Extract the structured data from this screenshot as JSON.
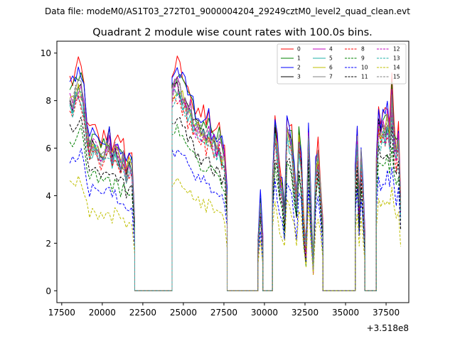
{
  "chart_data": {
    "type": "line",
    "suptitle": "Data file: modeM0/AS1T03_272T01_9000004204_29249cztM0_level2_quad_clean.evt",
    "title": "Quadrant 2 module wise count rates with 100.0s bins.",
    "xlabel": "",
    "ylabel": "",
    "x_offset_label": "+3.518e8",
    "xlim": [
      17200,
      38900
    ],
    "ylim": [
      -0.5,
      10.5
    ],
    "xticks": [
      17500,
      20000,
      22500,
      25000,
      27500,
      30000,
      32500,
      35000,
      37500
    ],
    "xtick_labels": [
      "17500",
      "20000",
      "22500",
      "25000",
      "27500",
      "30000",
      "32500",
      "35000",
      "37500"
    ],
    "yticks": [
      0,
      2,
      4,
      6,
      8,
      10
    ],
    "ytick_labels": [
      "0",
      "2",
      "4",
      "6",
      "8",
      "10"
    ],
    "legend_location": "upper-right",
    "series": [
      {
        "name": "0",
        "color": "#ff0000",
        "dash": "solid",
        "scale": 1.0
      },
      {
        "name": "1",
        "color": "#008000",
        "dash": "solid",
        "scale": 0.96
      },
      {
        "name": "2",
        "color": "#0000ff",
        "dash": "solid",
        "scale": 0.98
      },
      {
        "name": "3",
        "color": "#000000",
        "dash": "solid",
        "scale": 0.9
      },
      {
        "name": "4",
        "color": "#bf00bf",
        "dash": "solid",
        "scale": 0.92
      },
      {
        "name": "5",
        "color": "#20b2aa",
        "dash": "solid",
        "scale": 0.88
      },
      {
        "name": "6",
        "color": "#bfbf00",
        "dash": "solid",
        "scale": 0.9
      },
      {
        "name": "7",
        "color": "#808080",
        "dash": "solid",
        "scale": 0.91
      },
      {
        "name": "8",
        "color": "#ff0000",
        "dash": "dashed",
        "scale": 0.86
      },
      {
        "name": "9",
        "color": "#008000",
        "dash": "dashed",
        "scale": 0.72
      },
      {
        "name": "10",
        "color": "#0000ff",
        "dash": "dashed",
        "scale": 0.62
      },
      {
        "name": "11",
        "color": "#000000",
        "dash": "dashed",
        "scale": 0.76
      },
      {
        "name": "12",
        "color": "#bf00bf",
        "dash": "dashed",
        "scale": 0.89
      },
      {
        "name": "13",
        "color": "#20b2aa",
        "dash": "dashed",
        "scale": 0.87
      },
      {
        "name": "14",
        "color": "#bfbf00",
        "dash": "dashed",
        "scale": 0.5
      },
      {
        "name": "15",
        "color": "#808080",
        "dash": "dashed",
        "scale": 0.9
      }
    ],
    "segments": [
      {
        "x_start": 18000,
        "x_end": 22000,
        "level": [
          8.9,
          8.8,
          9.2,
          9.4,
          9.3,
          8.6,
          7.4,
          6.6,
          6.8,
          6.7,
          6.4,
          6.2,
          6.5,
          6.6,
          6.8,
          6.1,
          6.6,
          6.3,
          5.9,
          6.1,
          5.4,
          5.8,
          5.6,
          3.0
        ]
      },
      {
        "x_start": 22000,
        "x_end": 24300,
        "level": [
          0,
          0
        ]
      },
      {
        "x_start": 24300,
        "x_end": 27700,
        "level": [
          9.2,
          9.4,
          9.5,
          9.3,
          9.0,
          8.8,
          8.3,
          8.5,
          8.0,
          7.6,
          7.8,
          7.3,
          7.4,
          7.0,
          7.4,
          6.9,
          6.8,
          6.5,
          6.8,
          6.3,
          6.1,
          4.0
        ]
      },
      {
        "x_start": 27700,
        "x_end": 29600,
        "level": [
          0,
          0
        ]
      },
      {
        "x_start": 29600,
        "x_end": 29900,
        "level": [
          2.0,
          3.9,
          2.2
        ]
      },
      {
        "x_start": 29900,
        "x_end": 30500,
        "level": [
          0,
          0
        ]
      },
      {
        "x_start": 30500,
        "x_end": 33600,
        "level": [
          5.0,
          7.2,
          6.4,
          5.1,
          4.6,
          3.4,
          7.4,
          7.0,
          6.6,
          5.2,
          3.9,
          6.9,
          5.8,
          3.2,
          1.8,
          7.0,
          3.8,
          1.2,
          5.4,
          6.2,
          4.6,
          3.0
        ]
      },
      {
        "x_start": 33600,
        "x_end": 35600,
        "level": [
          0,
          0
        ]
      },
      {
        "x_start": 35600,
        "x_end": 36200,
        "level": [
          5.0,
          6.8,
          3.8,
          6.3,
          4.4,
          2.2
        ]
      },
      {
        "x_start": 36200,
        "x_end": 36900,
        "level": [
          0,
          0
        ]
      },
      {
        "x_start": 36900,
        "x_end": 38400,
        "level": [
          5.6,
          7.6,
          7.2,
          7.5,
          7.3,
          7.9,
          7.1,
          8.8,
          7.0,
          6.2,
          7.0,
          3.8
        ]
      }
    ]
  }
}
